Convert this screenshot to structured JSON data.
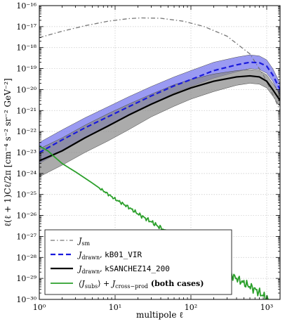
{
  "chart_data": {
    "type": "line",
    "xscale": "log",
    "yscale": "log",
    "xlim": [
      1,
      1500
    ],
    "ylim": [
      1e-30,
      1e-16
    ],
    "grid": true,
    "xlabel": "multipole ℓ",
    "ylabel": "ℓ(ℓ + 1)Cℓ/2π [cm⁻⁴ s⁻² sr⁻² GeV⁻²]",
    "x_tick_labels": [
      "10⁰",
      "10¹",
      "10²",
      "10³"
    ],
    "y_tick_labels": [
      "10⁻³⁰",
      "10⁻²⁹",
      "10⁻²⁸",
      "10⁻²⁷",
      "10⁻²⁶",
      "10⁻²⁵",
      "10⁻²⁴",
      "10⁻²³",
      "10⁻²²",
      "10⁻²¹",
      "10⁻²⁰",
      "10⁻¹⁹",
      "10⁻¹⁸",
      "10⁻¹⁷",
      "10⁻¹⁶"
    ],
    "legend_position": "lower-left",
    "series": [
      {
        "name": "J_sm",
        "style": "dash-dot",
        "color": "#777777",
        "x": [
          1,
          2,
          4,
          8,
          15,
          22,
          40,
          80,
          150,
          300,
          600,
          900,
          1200,
          1500
        ],
        "y": [
          3e-18,
          6e-18,
          1.1e-17,
          1.8e-17,
          2.4e-17,
          2.6e-17,
          2.5e-17,
          1.8e-17,
          1e-17,
          3.5e-18,
          5e-19,
          5e-20,
          6e-21,
          1e-21
        ]
      },
      {
        "name": "J_drawn, kB01_VIR",
        "style": "dashed",
        "color": "#1a1add",
        "x": [
          1,
          2,
          4,
          8,
          15,
          30,
          60,
          100,
          200,
          400,
          600,
          800,
          1000,
          1200,
          1500
        ],
        "y": [
          1e-23,
          4e-23,
          1.5e-22,
          5e-22,
          1.5e-21,
          5e-21,
          1.5e-20,
          3e-20,
          8e-20,
          1.5e-19,
          2e-19,
          1.9e-19,
          1.3e-19,
          5e-20,
          1e-20
        ],
        "band_low": [
          3e-24,
          1.2e-23,
          5e-23,
          1.8e-22,
          6e-22,
          2e-21,
          7e-21,
          1.4e-20,
          3.5e-20,
          7e-20,
          1e-19,
          9e-20,
          6e-20,
          2.5e-20,
          5e-21
        ],
        "band_high": [
          3e-23,
          1.2e-22,
          4.5e-22,
          1.5e-21,
          4.5e-21,
          1.4e-20,
          4e-20,
          8e-20,
          2e-19,
          3.5e-19,
          4.5e-19,
          4e-19,
          2.6e-19,
          1e-19,
          2e-20
        ]
      },
      {
        "name": "J_drawn, kSANCHEZ14_200",
        "style": "solid",
        "color": "#000000",
        "x": [
          1,
          2,
          4,
          8,
          15,
          30,
          60,
          100,
          200,
          400,
          600,
          800,
          1000,
          1200,
          1500
        ],
        "y": [
          4e-24,
          1.2e-23,
          5e-23,
          1.8e-22,
          6e-22,
          2e-21,
          6e-21,
          1.2e-20,
          2.5e-20,
          4e-20,
          4.5e-20,
          4e-20,
          2.5e-20,
          1e-20,
          3e-21
        ],
        "band_low": [
          7e-25,
          2.5e-24,
          1e-23,
          3.5e-23,
          1.2e-22,
          5e-22,
          1.6e-21,
          3.5e-21,
          8e-21,
          1.6e-20,
          2e-20,
          1.8e-20,
          1.2e-20,
          5e-21,
          1.5e-21
        ],
        "band_high": [
          1.5e-23,
          5e-23,
          2e-22,
          7e-22,
          2e-21,
          6e-21,
          1.7e-20,
          3e-20,
          5.5e-20,
          8e-20,
          9e-20,
          8e-20,
          5e-20,
          2e-20,
          6e-21
        ]
      },
      {
        "name": "⟨J_subs⟩ + J_cross−prod (both cases)",
        "style": "solid",
        "color": "#2ca02c",
        "x": [
          1,
          1.3,
          1.6,
          2,
          2.5,
          3,
          4,
          5,
          7,
          10,
          15,
          20,
          30,
          50,
          70,
          100,
          150,
          200,
          300,
          400,
          500,
          700,
          900,
          1100,
          1300,
          1450
        ],
        "y": [
          2e-23,
          1.2e-23,
          6e-24,
          3e-24,
          1.8e-24,
          1.2e-24,
          6e-25,
          3.5e-25,
          1.5e-25,
          6e-26,
          2.5e-26,
          1.2e-26,
          5e-27,
          1.5e-27,
          6e-28,
          2.5e-28,
          1e-28,
          5e-29,
          2e-29,
          1e-29,
          6e-30,
          3e-30,
          1.5e-30,
          8e-31,
          4e-31,
          2e-31
        ]
      }
    ]
  },
  "legend": {
    "items": [
      {
        "main": "J",
        "sub": "sm",
        "code": "",
        "tail": ""
      },
      {
        "main": "J",
        "sub": "drawn",
        "code": "kB01_VIR",
        "tail": ""
      },
      {
        "main": "J",
        "sub": "drawn",
        "code": "kSANCHEZ14_200",
        "tail": ""
      },
      {
        "main": "⟨J",
        "sub": "subs",
        "code": "",
        "tail": "(both cases)"
      }
    ]
  },
  "colors": {
    "blue_band": "#7878ee",
    "gray_band": "#888888"
  }
}
